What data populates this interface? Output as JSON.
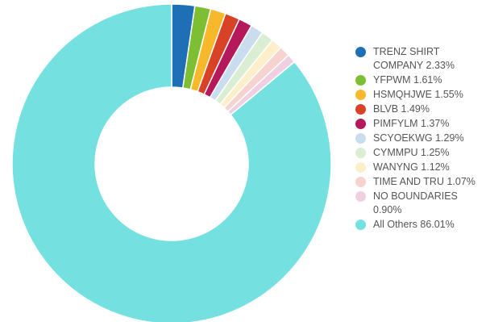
{
  "chart_data": {
    "type": "pie",
    "donut": true,
    "legend_position": "right",
    "slices": [
      {
        "label": "TRENZ SHIRT COMPANY",
        "percent_label": "2.33%",
        "value": 2.33,
        "color": "#1F6FB7"
      },
      {
        "label": "YFPWM",
        "percent_label": "1.61%",
        "value": 1.61,
        "color": "#7DBE33"
      },
      {
        "label": "HSMQHJWE",
        "percent_label": "1.55%",
        "value": 1.55,
        "color": "#F7B82B"
      },
      {
        "label": "BLVB",
        "percent_label": "1.49%",
        "value": 1.49,
        "color": "#D84327"
      },
      {
        "label": "PIMFYLM",
        "percent_label": "1.37%",
        "value": 1.37,
        "color": "#B5195C"
      },
      {
        "label": "SCYOEKWG",
        "percent_label": "1.29%",
        "value": 1.29,
        "color": "#C9DDEF"
      },
      {
        "label": "CYMMPU",
        "percent_label": "1.25%",
        "value": 1.25,
        "color": "#D9EED3"
      },
      {
        "label": "WANYNG",
        "percent_label": "1.12%",
        "value": 1.12,
        "color": "#FDEFC9"
      },
      {
        "label": "TIME AND TRU",
        "percent_label": "1.07%",
        "value": 1.07,
        "color": "#F6D3CE"
      },
      {
        "label": "NO BOUNDARIES",
        "percent_label": "0.90%",
        "value": 0.9,
        "color": "#F0CFE0"
      },
      {
        "label": "All Others",
        "percent_label": "86.01%",
        "value": 86.01,
        "color": "#74E0E0"
      }
    ]
  }
}
